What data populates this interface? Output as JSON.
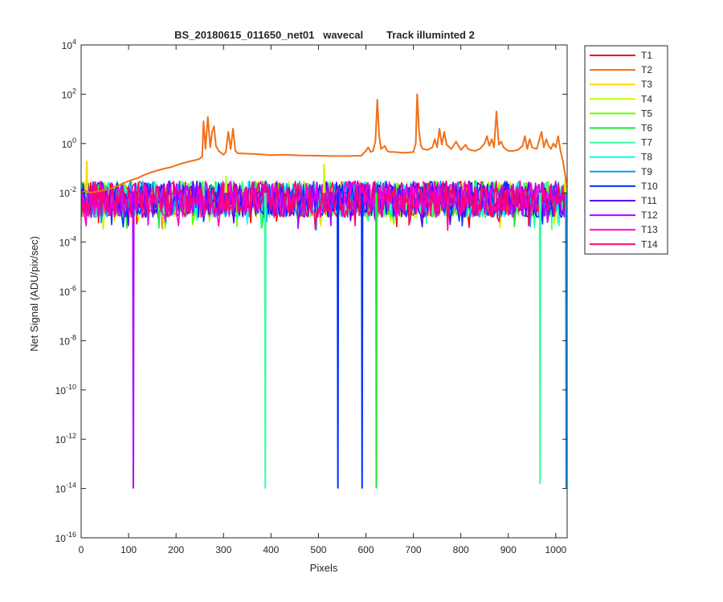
{
  "chart_data": {
    "type": "line",
    "title": "BS_20180615_011650_net01   wavecal        Track illuminted 2",
    "xlabel": "Pixels",
    "ylabel": "Net Signal (ADU/pix/sec)",
    "xlim": [
      0,
      1024
    ],
    "ylim": [
      1e-16,
      10000.0
    ],
    "y_scale": "log",
    "grid": false,
    "legend_position": "outside-top-right",
    "x_ticks": [
      0,
      100,
      200,
      300,
      400,
      500,
      600,
      700,
      800,
      900,
      1000
    ],
    "y_ticks": [
      {
        "exp": -16,
        "label": "10",
        "sup": "-16"
      },
      {
        "exp": -14,
        "label": "10",
        "sup": "-14"
      },
      {
        "exp": -12,
        "label": "10",
        "sup": "-12"
      },
      {
        "exp": -10,
        "label": "10",
        "sup": "-10"
      },
      {
        "exp": -8,
        "label": "10",
        "sup": "-8"
      },
      {
        "exp": -6,
        "label": "10",
        "sup": "-6"
      },
      {
        "exp": -4,
        "label": "10",
        "sup": "-4"
      },
      {
        "exp": -2,
        "label": "10",
        "sup": "-2"
      },
      {
        "exp": 0,
        "label": "10",
        "sup": "0"
      },
      {
        "exp": 2,
        "label": "10",
        "sup": "2"
      },
      {
        "exp": 4,
        "label": "10",
        "sup": "4"
      }
    ],
    "bright_track": {
      "name": "T2",
      "points": [
        [
          0,
          0.01
        ],
        [
          10,
          0.012
        ],
        [
          20,
          0.01
        ],
        [
          30,
          0.011
        ],
        [
          40,
          0.012
        ],
        [
          50,
          0.013
        ],
        [
          60,
          0.014
        ],
        [
          70,
          0.017
        ],
        [
          80,
          0.02
        ],
        [
          90,
          0.025
        ],
        [
          100,
          0.03
        ],
        [
          110,
          0.035
        ],
        [
          120,
          0.04
        ],
        [
          130,
          0.05
        ],
        [
          140,
          0.06
        ],
        [
          150,
          0.07
        ],
        [
          160,
          0.08
        ],
        [
          170,
          0.09
        ],
        [
          180,
          0.1
        ],
        [
          190,
          0.11
        ],
        [
          200,
          0.13
        ],
        [
          210,
          0.15
        ],
        [
          220,
          0.17
        ],
        [
          230,
          0.19
        ],
        [
          240,
          0.21
        ],
        [
          250,
          0.24
        ],
        [
          255,
          0.3
        ],
        [
          258,
          8
        ],
        [
          262,
          0.6
        ],
        [
          267,
          12
        ],
        [
          272,
          0.7
        ],
        [
          276,
          3
        ],
        [
          280,
          5
        ],
        [
          284,
          0.8
        ],
        [
          290,
          0.5
        ],
        [
          296,
          0.4
        ],
        [
          300,
          0.35
        ],
        [
          305,
          0.45
        ],
        [
          310,
          3
        ],
        [
          315,
          0.6
        ],
        [
          320,
          4
        ],
        [
          325,
          0.5
        ],
        [
          330,
          0.4
        ],
        [
          360,
          0.38
        ],
        [
          380,
          0.36
        ],
        [
          400,
          0.34
        ],
        [
          430,
          0.35
        ],
        [
          460,
          0.33
        ],
        [
          500,
          0.32
        ],
        [
          530,
          0.31
        ],
        [
          560,
          0.31
        ],
        [
          590,
          0.32
        ],
        [
          600,
          0.5
        ],
        [
          605,
          0.7
        ],
        [
          610,
          0.45
        ],
        [
          615,
          0.5
        ],
        [
          620,
          1.2
        ],
        [
          624,
          60
        ],
        [
          628,
          2
        ],
        [
          632,
          0.6
        ],
        [
          640,
          0.8
        ],
        [
          645,
          0.5
        ],
        [
          650,
          0.45
        ],
        [
          660,
          0.45
        ],
        [
          680,
          0.42
        ],
        [
          700,
          0.45
        ],
        [
          705,
          1
        ],
        [
          708,
          100
        ],
        [
          712,
          3
        ],
        [
          716,
          0.8
        ],
        [
          720,
          0.6
        ],
        [
          730,
          0.55
        ],
        [
          740,
          0.7
        ],
        [
          745,
          1.5
        ],
        [
          750,
          0.7
        ],
        [
          755,
          4
        ],
        [
          760,
          0.9
        ],
        [
          765,
          3
        ],
        [
          770,
          0.9
        ],
        [
          780,
          0.6
        ],
        [
          790,
          1.2
        ],
        [
          800,
          0.55
        ],
        [
          810,
          0.9
        ],
        [
          815,
          0.6
        ],
        [
          820,
          0.55
        ],
        [
          830,
          0.5
        ],
        [
          840,
          0.6
        ],
        [
          850,
          1
        ],
        [
          855,
          2
        ],
        [
          860,
          0.8
        ],
        [
          865,
          1.5
        ],
        [
          870,
          0.7
        ],
        [
          875,
          20
        ],
        [
          880,
          0.9
        ],
        [
          885,
          1.2
        ],
        [
          890,
          0.7
        ],
        [
          900,
          0.5
        ],
        [
          910,
          0.5
        ],
        [
          920,
          0.55
        ],
        [
          930,
          0.8
        ],
        [
          935,
          2
        ],
        [
          940,
          0.6
        ],
        [
          945,
          1.5
        ],
        [
          950,
          0.7
        ],
        [
          960,
          0.6
        ],
        [
          970,
          3
        ],
        [
          975,
          0.7
        ],
        [
          980,
          1.5
        ],
        [
          985,
          0.8
        ],
        [
          990,
          0.6
        ],
        [
          995,
          1
        ],
        [
          1000,
          0.7
        ],
        [
          1005,
          2
        ],
        [
          1010,
          0.5
        ],
        [
          1015,
          0.2
        ],
        [
          1020,
          0.05
        ],
        [
          1024,
          0.02
        ]
      ]
    },
    "noise_tracks": {
      "baseline": 0.01,
      "band_low": 0.001,
      "band_high": 0.03,
      "dip_level": 0.0003
    },
    "series": [
      {
        "name": "T1",
        "color": "#FF0000"
      },
      {
        "name": "T2",
        "color": "#F07018"
      },
      {
        "name": "T3",
        "color": "#FFD700"
      },
      {
        "name": "T4",
        "color": "#BFFF00"
      },
      {
        "name": "T5",
        "color": "#66FF00"
      },
      {
        "name": "T6",
        "color": "#1FE636"
      },
      {
        "name": "T7",
        "color": "#33FFA0"
      },
      {
        "name": "T8",
        "color": "#00FFFF"
      },
      {
        "name": "T9",
        "color": "#0A9AFF"
      },
      {
        "name": "T10",
        "color": "#0033FF"
      },
      {
        "name": "T11",
        "color": "#5500FF"
      },
      {
        "name": "T12",
        "color": "#B000FF"
      },
      {
        "name": "T13",
        "color": "#FF00CC"
      },
      {
        "name": "T14",
        "color": "#FF0070"
      }
    ],
    "deep_spikes": [
      {
        "x": 110,
        "y": 1e-14,
        "series": "T12"
      },
      {
        "x": 388,
        "y": 1e-14,
        "series": "T7"
      },
      {
        "x": 541,
        "y": 1e-14,
        "series": "T10"
      },
      {
        "x": 592,
        "y": 1e-14,
        "series": "T10"
      },
      {
        "x": 622,
        "y": 1e-14,
        "series": "T6"
      },
      {
        "x": 967,
        "y": 1.5e-14,
        "series": "T7"
      },
      {
        "x": 1022,
        "y": 1e-14,
        "series": "T9"
      }
    ],
    "high_spikes": [
      {
        "x": 12,
        "y": 0.2,
        "series": "T3"
      },
      {
        "x": 305,
        "y": 0.05,
        "series": "T4"
      },
      {
        "x": 512,
        "y": 0.15,
        "series": "T4"
      },
      {
        "x": 1020,
        "y": 0.04,
        "series": "T3"
      }
    ]
  }
}
